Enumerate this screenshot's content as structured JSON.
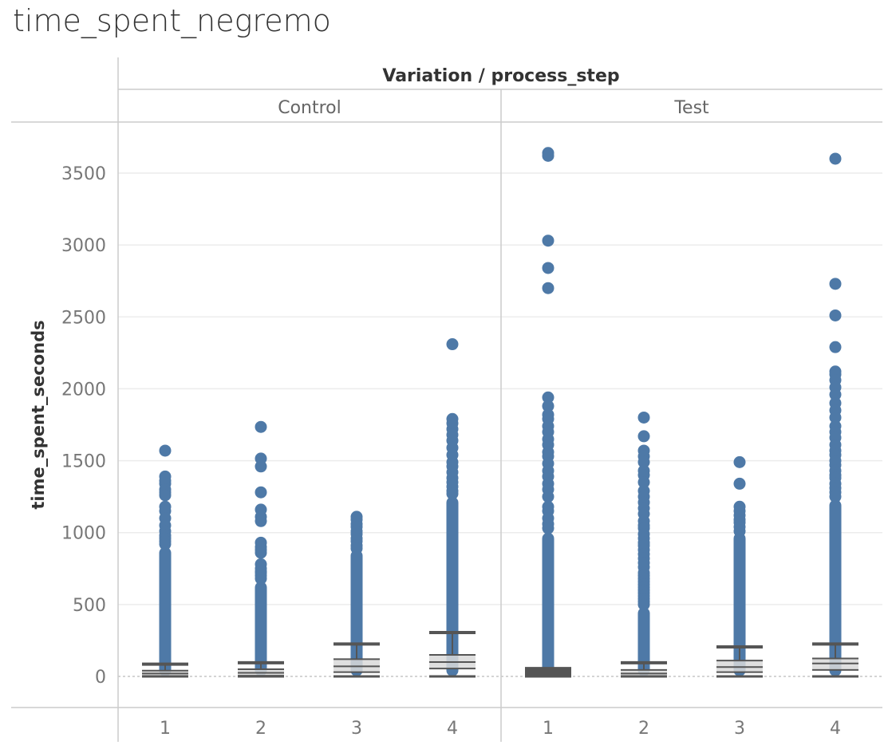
{
  "chart_data": {
    "type": "box",
    "title": "time_spent_negremo",
    "header_label": "Variation / process_step",
    "ylabel": "time_spent_seconds",
    "ylim": [
      -200,
      3800
    ],
    "yticks": [
      0,
      500,
      1000,
      1500,
      2000,
      2500,
      3000,
      3500
    ],
    "ytick_labels": [
      "0",
      "500",
      "1000",
      "1500",
      "2000",
      "2500",
      "3000",
      "3500"
    ],
    "grid": true,
    "point_color": "#4e79a7",
    "box_color": "#555555",
    "panels": [
      {
        "name": "Control",
        "categories": [
          "1",
          "2",
          "3",
          "4"
        ],
        "boxes": [
          {
            "category": "1",
            "whisker_low": 0,
            "q1": 3,
            "median": 20,
            "q3": 40,
            "whisker_high": 85,
            "dense_max": 900,
            "outliers": [
              1570,
              1390,
              1360,
              1340,
              1300,
              1280,
              1260,
              1180,
              1150,
              1100,
              1050,
              1010,
              980,
              960,
              940,
              920
            ]
          },
          {
            "category": "2",
            "whisker_low": 0,
            "q1": 5,
            "median": 25,
            "q3": 50,
            "whisker_high": 95,
            "dense_max": 660,
            "outliers": [
              1735,
              1515,
              1460,
              1280,
              1160,
              1110,
              1080,
              930,
              900,
              880,
              860,
              780,
              750,
              730,
              720,
              700,
              680
            ]
          },
          {
            "category": "3",
            "whisker_low": 0,
            "q1": 30,
            "median": 70,
            "q3": 120,
            "whisker_high": 225,
            "dense_max": 880,
            "outliers": [
              1110,
              1090,
              1060,
              1040,
              1010,
              990,
              960,
              940,
              910,
              890
            ]
          },
          {
            "category": "4",
            "whisker_low": 0,
            "q1": 55,
            "median": 100,
            "q3": 150,
            "whisker_high": 305,
            "dense_max": 1250,
            "outliers": [
              2310,
              1790,
              1760,
              1720,
              1680,
              1640,
              1590,
              1540,
              1490,
              1460,
              1420,
              1380,
              1350,
              1320,
              1290,
              1270
            ]
          }
        ]
      },
      {
        "name": "Test",
        "categories": [
          "1",
          "2",
          "3",
          "4"
        ],
        "boxes": [
          {
            "category": "1",
            "whisker_low": 0,
            "q1": 0,
            "median": 15,
            "q3": 30,
            "whisker_high": 55,
            "dense_max": 1000,
            "outliers": [
              3640,
              3620,
              3030,
              2840,
              2700,
              1940,
              1880,
              1820,
              1790,
              1740,
              1700,
              1650,
              1610,
              1560,
              1530,
              1480,
              1430,
              1390,
              1340,
              1300,
              1250,
              1180,
              1150,
              1100,
              1060,
              1030
            ]
          },
          {
            "category": "2",
            "whisker_low": 0,
            "q1": 3,
            "median": 20,
            "q3": 45,
            "whisker_high": 95,
            "dense_max": 480,
            "outliers": [
              1800,
              1670,
              1570,
              1530,
              1490,
              1430,
              1400,
              1350,
              1290,
              1250,
              1210,
              1170,
              1130,
              1080,
              1050,
              1030,
              990,
              960,
              930,
              910,
              880,
              850,
              820,
              790,
              760,
              720,
              700,
              680,
              660,
              640,
              620,
              600,
              580,
              560,
              540,
              520,
              500
            ]
          },
          {
            "category": "3",
            "whisker_low": 0,
            "q1": 30,
            "median": 65,
            "q3": 110,
            "whisker_high": 205,
            "dense_max": 1000,
            "outliers": [
              1490,
              1340,
              1180,
              1150,
              1120,
              1090,
              1070,
              1040,
              1010
            ]
          },
          {
            "category": "4",
            "whisker_low": 0,
            "q1": 45,
            "median": 90,
            "q3": 125,
            "whisker_high": 225,
            "dense_max": 1230,
            "outliers": [
              3600,
              2730,
              2510,
              2290,
              2120,
              2100,
              2060,
              2010,
              1960,
              1900,
              1850,
              1800,
              1740,
              1700,
              1660,
              1610,
              1570,
              1540,
              1500,
              1470,
              1430,
              1400,
              1380,
              1340,
              1310,
              1280,
              1250
            ]
          }
        ]
      }
    ]
  }
}
